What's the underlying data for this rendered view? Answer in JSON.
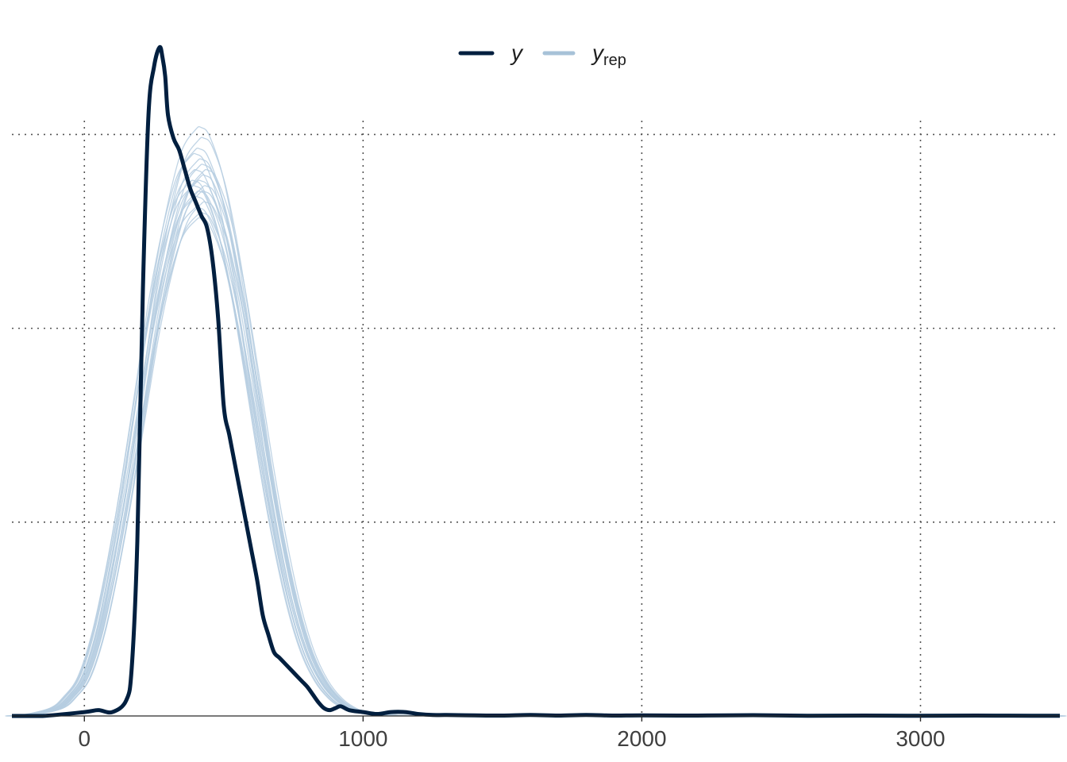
{
  "chart_data": {
    "type": "line",
    "title": "",
    "xlabel": "",
    "ylabel": "",
    "xlim": [
      -260,
      3500
    ],
    "ylim": [
      0,
      0.0031
    ],
    "x_ticks": [
      0,
      1000,
      2000,
      3000
    ],
    "x_tick_labels": [
      "0",
      "1000",
      "2000",
      "3000"
    ],
    "y_gridlines": [
      0.001,
      0.002,
      0.003
    ],
    "grid": true,
    "grid_style": "dotted",
    "legend_position": "top",
    "legend": [
      {
        "label": "y",
        "color": "#011f3f"
      },
      {
        "label": "y",
        "subscript": "rep",
        "color": "#a7c2d8"
      }
    ],
    "colors": {
      "y": "#011f3f",
      "yrep": "#b5cde0",
      "grid": "#555555",
      "text": "#3f3f3f"
    },
    "series": [
      {
        "name": "y",
        "color": "#011f3f",
        "x": [
          -260,
          -150,
          0,
          50,
          100,
          150,
          170,
          190,
          210,
          230,
          250,
          270,
          280,
          290,
          300,
          320,
          340,
          360,
          380,
          400,
          420,
          440,
          460,
          480,
          500,
          520,
          540,
          560,
          580,
          600,
          620,
          640,
          660,
          680,
          700,
          720,
          740,
          760,
          780,
          800,
          820,
          840,
          860,
          880,
          900,
          920,
          950,
          1000,
          1050,
          1100,
          1150,
          1200,
          1250,
          1300,
          1400,
          1500,
          1600,
          1700,
          1800,
          1900,
          2000,
          2200,
          2400,
          2600,
          2800,
          3000,
          3200,
          3400,
          3500
        ],
        "y": [
          0,
          0,
          2e-05,
          3e-05,
          2e-05,
          8e-05,
          0.00025,
          0.0009,
          0.0022,
          0.0031,
          0.00335,
          0.00345,
          0.0034,
          0.0033,
          0.0031,
          0.00298,
          0.00292,
          0.00282,
          0.00272,
          0.00265,
          0.00258,
          0.00252,
          0.00235,
          0.00205,
          0.0016,
          0.00145,
          0.0013,
          0.00115,
          0.001,
          0.00085,
          0.0007,
          0.00052,
          0.00042,
          0.00033,
          0.0003,
          0.00027,
          0.00024,
          0.00021,
          0.00018,
          0.00015,
          0.00011,
          7e-05,
          4e-05,
          3e-05,
          4e-05,
          5e-05,
          3e-05,
          2e-05,
          1e-05,
          2e-05,
          2e-05,
          1e-05,
          5e-06,
          5e-06,
          3e-06,
          2e-06,
          5e-06,
          2e-06,
          5e-06,
          2e-06,
          3e-06,
          2e-06,
          4e-06,
          1e-06,
          2e-06,
          1e-06,
          2e-06,
          1e-06,
          1e-06
        ]
      },
      {
        "name": "yrep",
        "color": "#b5cde0",
        "x": [
          -260,
          -200,
          -100,
          -50,
          0,
          50,
          100,
          150,
          200,
          250,
          300,
          350,
          400,
          420,
          450,
          500,
          550,
          600,
          650,
          700,
          750,
          800,
          850,
          900,
          950,
          1000,
          1100,
          1200,
          1300,
          1500,
          2000,
          3000,
          3500
        ],
        "y": [
          0,
          5e-06,
          4e-05,
          0.0001,
          0.0002,
          0.00042,
          0.00075,
          0.00115,
          0.0016,
          0.00205,
          0.0024,
          0.00265,
          0.00275,
          0.00276,
          0.00272,
          0.00252,
          0.00218,
          0.00175,
          0.0013,
          0.0009,
          0.00057,
          0.00033,
          0.00018,
          9e-05,
          4e-05,
          1.8e-05,
          4e-06,
          1e-06,
          0,
          0,
          0,
          0,
          0
        ]
      }
    ]
  }
}
